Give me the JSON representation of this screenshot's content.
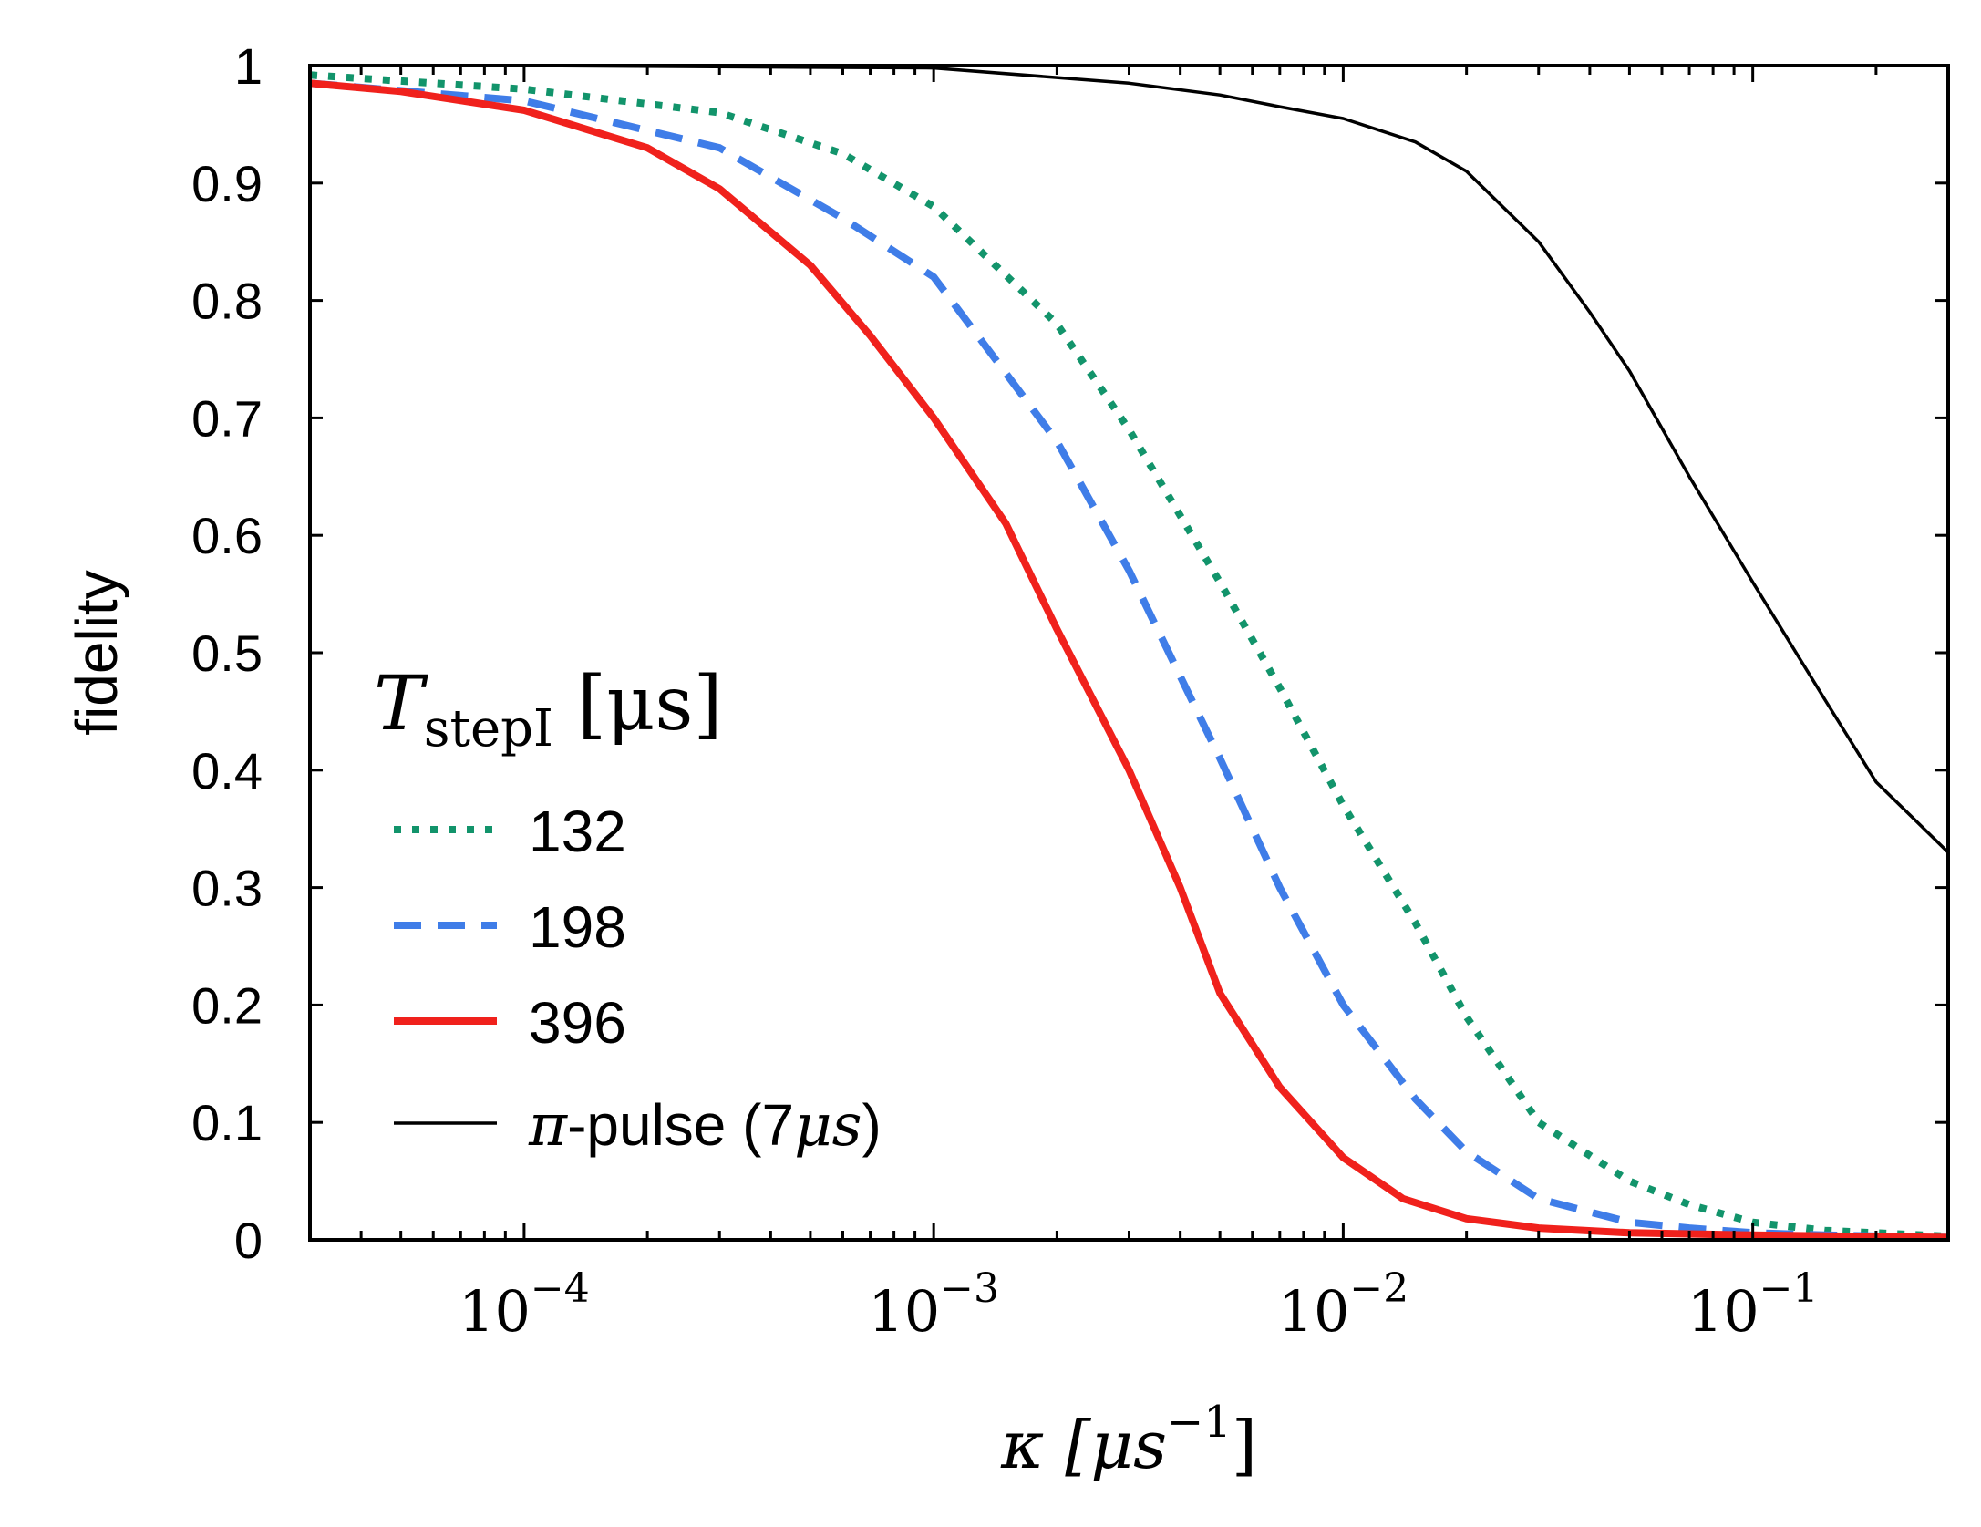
{
  "chart_data": {
    "type": "line",
    "xscale": "log",
    "xlim": [
      3e-05,
      0.3
    ],
    "ylim": [
      0,
      1
    ],
    "xlabel": "κ [μs⁻¹]",
    "xlabel_parts": {
      "symbol": "κ",
      "unit": "μs",
      "exp": "−1"
    },
    "ylabel": "fidelity",
    "xticks": [
      {
        "value": 0.0001,
        "base": "10",
        "exp": "−4"
      },
      {
        "value": 0.001,
        "base": "10",
        "exp": "−3"
      },
      {
        "value": 0.01,
        "base": "10",
        "exp": "−2"
      },
      {
        "value": 0.1,
        "base": "10",
        "exp": "−1"
      }
    ],
    "yticks": [
      {
        "value": 0,
        "label": "0"
      },
      {
        "value": 0.1,
        "label": "0.1"
      },
      {
        "value": 0.2,
        "label": "0.2"
      },
      {
        "value": 0.3,
        "label": "0.3"
      },
      {
        "value": 0.4,
        "label": "0.4"
      },
      {
        "value": 0.5,
        "label": "0.5"
      },
      {
        "value": 0.6,
        "label": "0.6"
      },
      {
        "value": 0.7,
        "label": "0.7"
      },
      {
        "value": 0.8,
        "label": "0.8"
      },
      {
        "value": 0.9,
        "label": "0.9"
      },
      {
        "value": 1,
        "label": "1"
      }
    ],
    "legend": {
      "placement": "lower-left",
      "title_symbol": "T",
      "title_subscript": "stepI",
      "title_unit": "[μs]"
    },
    "series": [
      {
        "name": "132",
        "color": "#12946b",
        "style": "dotted",
        "x": [
          3e-05,
          0.0001,
          0.0003,
          0.0006,
          0.001,
          0.002,
          0.003,
          0.005,
          0.007,
          0.01,
          0.015,
          0.02,
          0.03,
          0.05,
          0.07,
          0.1,
          0.15,
          0.3
        ],
        "y": [
          0.992,
          0.98,
          0.96,
          0.925,
          0.88,
          0.78,
          0.69,
          0.56,
          0.47,
          0.37,
          0.27,
          0.19,
          0.1,
          0.05,
          0.03,
          0.015,
          0.008,
          0.003
        ]
      },
      {
        "name": "198",
        "color": "#3f7de8",
        "style": "dashed",
        "x": [
          3e-05,
          0.0001,
          0.0003,
          0.0006,
          0.001,
          0.002,
          0.003,
          0.005,
          0.007,
          0.01,
          0.015,
          0.02,
          0.03,
          0.05,
          0.07,
          0.1,
          0.15,
          0.3
        ],
        "y": [
          0.985,
          0.97,
          0.93,
          0.87,
          0.82,
          0.68,
          0.57,
          0.41,
          0.3,
          0.2,
          0.12,
          0.075,
          0.035,
          0.015,
          0.01,
          0.006,
          0.004,
          0.002
        ]
      },
      {
        "name": "396",
        "color": "#f0211c",
        "style": "solid-thick",
        "x": [
          3e-05,
          5e-05,
          0.0001,
          0.0002,
          0.0003,
          0.0005,
          0.0007,
          0.001,
          0.0015,
          0.002,
          0.003,
          0.004,
          0.005,
          0.007,
          0.01,
          0.014,
          0.02,
          0.03,
          0.05,
          0.1,
          0.3
        ],
        "y": [
          0.985,
          0.978,
          0.962,
          0.93,
          0.895,
          0.83,
          0.77,
          0.7,
          0.61,
          0.52,
          0.4,
          0.3,
          0.21,
          0.13,
          0.07,
          0.035,
          0.018,
          0.01,
          0.006,
          0.004,
          0.002
        ]
      },
      {
        "name": "π-pulse (7μs)",
        "label_symbol": "π",
        "label_text": "-pulse (7",
        "label_unit": "μs",
        "label_close": ")",
        "color": "#000000",
        "style": "solid-thin",
        "x": [
          3e-05,
          0.0001,
          0.001,
          0.003,
          0.005,
          0.007,
          0.01,
          0.015,
          0.02,
          0.03,
          0.04,
          0.05,
          0.07,
          0.1,
          0.15,
          0.2,
          0.3
        ],
        "y": [
          1.0,
          1.0,
          0.998,
          0.985,
          0.975,
          0.965,
          0.955,
          0.935,
          0.91,
          0.85,
          0.79,
          0.74,
          0.65,
          0.56,
          0.46,
          0.39,
          0.33
        ]
      }
    ]
  }
}
